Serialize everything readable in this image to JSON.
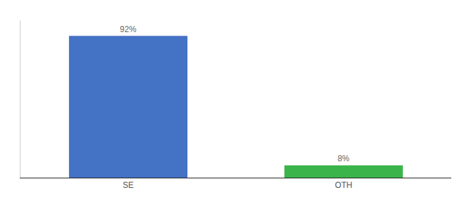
{
  "chart_data": {
    "type": "bar",
    "categories": [
      "SE",
      "OTH"
    ],
    "values": [
      92,
      8
    ],
    "value_labels": [
      "92%",
      "8%"
    ],
    "colors": [
      "#4472c4",
      "#3bb54a"
    ],
    "ylim": [
      0,
      102
    ],
    "grid": false,
    "data_labels": true,
    "tick_labels": "x"
  }
}
